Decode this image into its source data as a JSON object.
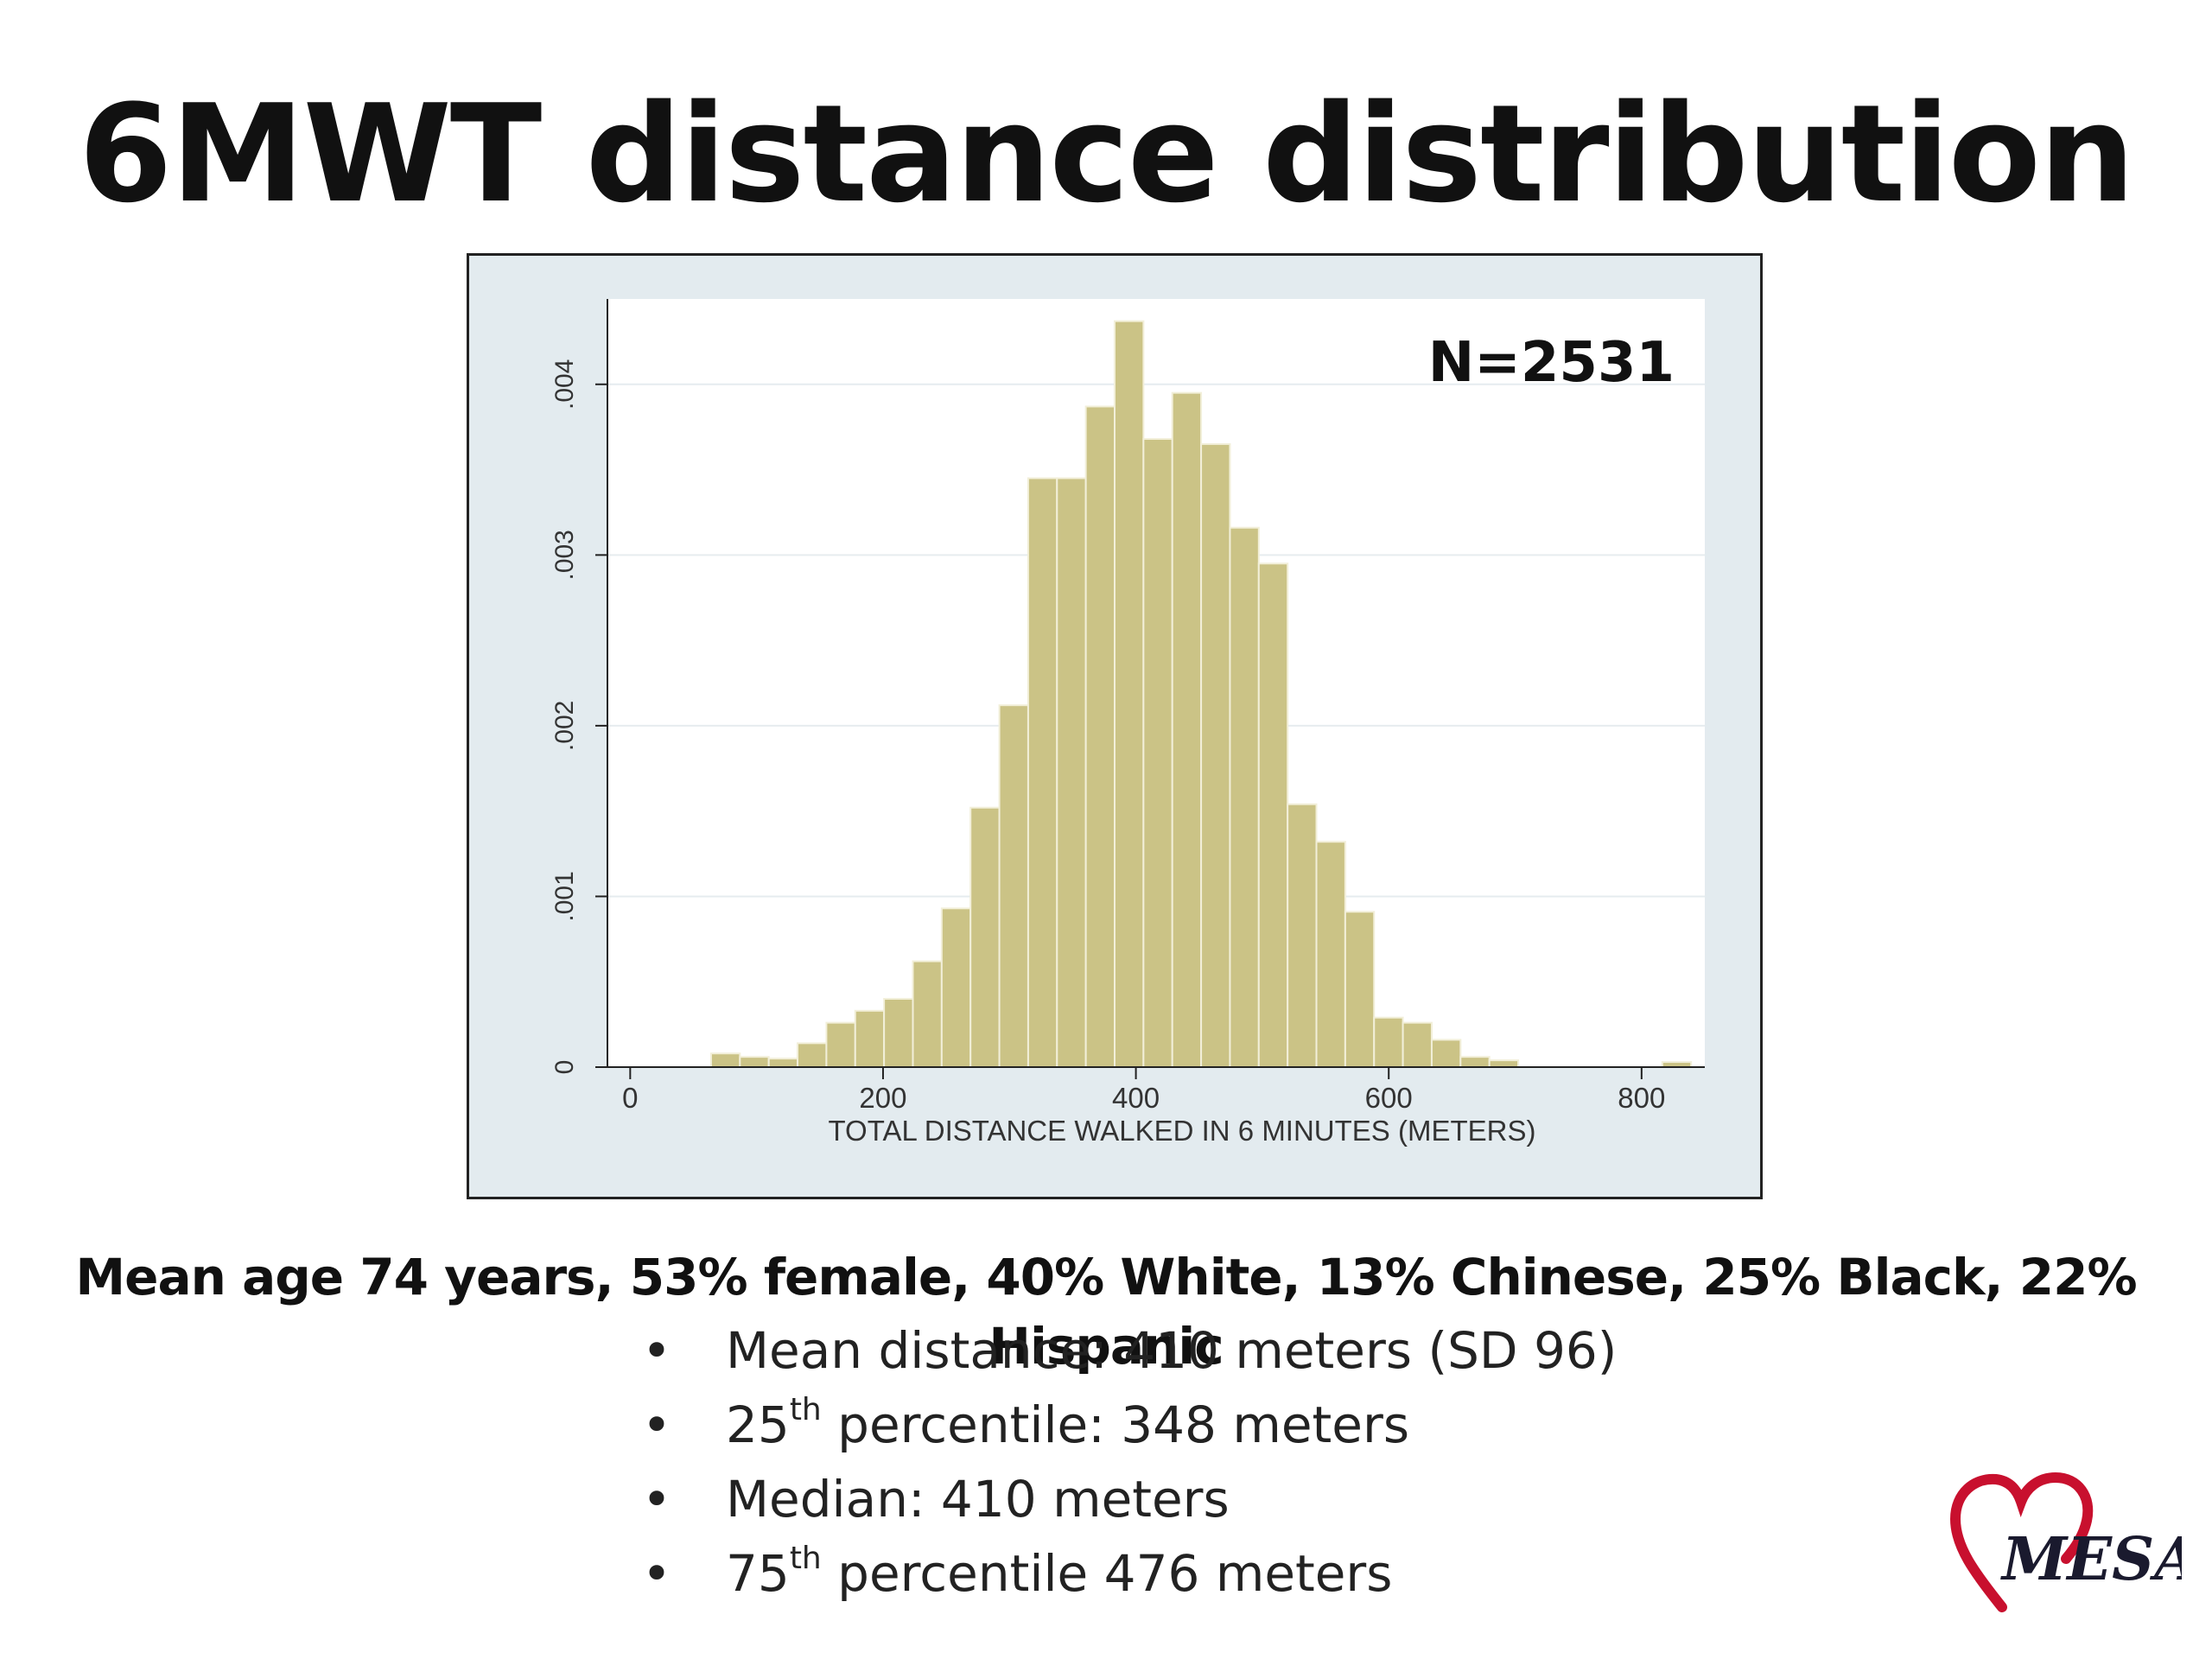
{
  "slide": {
    "title": "6MWT distance distribution",
    "summary": "Mean age 74 years, 53% female, 40% White, 13% Chinese, 25% Black, 22% Hispanic",
    "stats": [
      {
        "bullet": "•",
        "pre": "Mean distance: 410 meters (SD 96)",
        "sup": "",
        "post": ""
      },
      {
        "bullet": "•",
        "pre": "25",
        "sup": "th",
        "post": " percentile: 348 meters"
      },
      {
        "bullet": "•",
        "pre": "Median: 410 meters",
        "sup": "",
        "post": ""
      },
      {
        "bullet": "•",
        "pre": "75",
        "sup": "th",
        "post": " percentile 476 meters"
      }
    ],
    "logo": {
      "text": "MESA",
      "heart_color": "#c8102e",
      "text_color": "#1a1a2e"
    }
  },
  "chart_data": {
    "type": "bar",
    "annotation": "N=2531",
    "xlabel": "TOTAL DISTANCE WALKED IN 6 MINUTES (METERS)",
    "ylabel": "",
    "xlim": [
      -18,
      850
    ],
    "ylim": [
      0,
      0.0045
    ],
    "xticks": [
      0,
      200,
      400,
      600,
      800
    ],
    "xtick_labels": [
      "0",
      "200",
      "400",
      "600",
      "800"
    ],
    "yticks": [
      0,
      0.001,
      0.002,
      0.003,
      0.004
    ],
    "ytick_labels": [
      "0",
      ".001",
      ".002",
      ".003",
      ".004"
    ],
    "grid": true,
    "bin_width": 22.8,
    "bin_starts": [
      64,
      86.8,
      109.6,
      132.4,
      155.2,
      178,
      200.8,
      223.6,
      246.4,
      269.2,
      292,
      314.8,
      337.6,
      360.4,
      383.2,
      406,
      428.8,
      451.6,
      474.4,
      497.2,
      520,
      542.8,
      565.6,
      588.4,
      611.2,
      634,
      656.8,
      679.6,
      702.4,
      725.2,
      748,
      770.8,
      793.6,
      816.4
    ],
    "values": [
      8e-05,
      6e-05,
      5e-05,
      0.00014,
      0.00026,
      0.00033,
      0.0004,
      0.00062,
      0.00093,
      0.00152,
      0.00212,
      0.00345,
      0.00345,
      0.00387,
      0.00437,
      0.00368,
      0.00395,
      0.00365,
      0.00316,
      0.00295,
      0.00154,
      0.00132,
      0.00091,
      0.00029,
      0.00026,
      0.00016,
      6e-05,
      4e-05,
      0,
      0,
      0,
      0,
      0,
      3e-05
    ],
    "colors": {
      "bar_fill": "#cbc386",
      "bar_stroke": "#f2efd9",
      "plot_bg": "#ffffff",
      "outer_bg": "#e3ebef",
      "grid": "#e6ecef",
      "axis": "#222222"
    }
  }
}
